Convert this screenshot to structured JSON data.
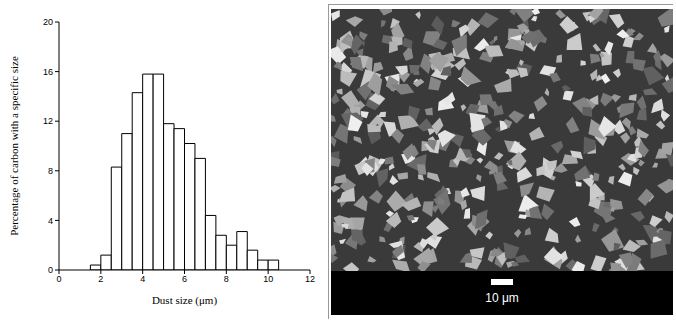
{
  "chart_data": {
    "type": "histogram",
    "xlabel": "Dust size (μm)",
    "ylabel": "Percentage of carbon with a specific size",
    "bins": [
      1.5,
      2,
      2.5,
      3,
      3.5,
      4,
      4.5,
      5,
      5.5,
      6,
      6.5,
      7,
      7.5,
      8,
      8.5,
      9,
      9.5,
      10,
      10.5
    ],
    "values": [
      0.4,
      1.2,
      8.3,
      11,
      14.3,
      15.8,
      15.8,
      11.8,
      11.4,
      10.2,
      9,
      4.4,
      2.8,
      2,
      3.1,
      1.6,
      0.8,
      0.8
    ],
    "color": "#ffffff",
    "xlim": [
      0,
      12
    ],
    "xticks": [
      0,
      2,
      4,
      6,
      8,
      10,
      12
    ],
    "ylim": [
      0,
      20
    ],
    "yticks": [
      0,
      4,
      8,
      12,
      16,
      20
    ],
    "grid": false
  },
  "micrograph": {
    "scale_bar_label": "10 μm"
  }
}
